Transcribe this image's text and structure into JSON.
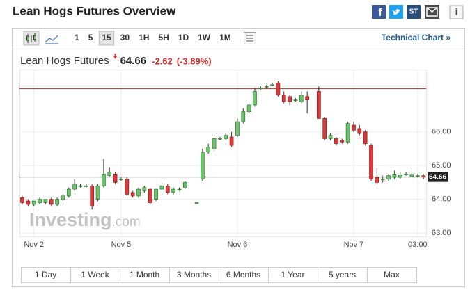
{
  "header": {
    "title": "Lean Hogs Futures Overview",
    "social": {
      "facebook": "f",
      "stocktwits": "ST",
      "info": "i"
    }
  },
  "toolbar": {
    "intervals": [
      "1",
      "5",
      "15",
      "30",
      "1H",
      "5H",
      "1D",
      "1W",
      "1M"
    ],
    "selected": 2,
    "technical": "Technical Chart »"
  },
  "quote": {
    "name": "Lean Hogs Futures",
    "price": "64.66",
    "change": "-2.62",
    "change_pct": "(-3.89%)"
  },
  "watermark": {
    "brand": "Investing",
    "suffix": ".com"
  },
  "ranges": [
    "1 Day",
    "1 Week",
    "1 Month",
    "3 Months",
    "6 Months",
    "1 Year",
    "5 years",
    "Max"
  ],
  "chart_data": {
    "type": "candlestick",
    "categories": [
      null,
      null,
      "Nov 2",
      null,
      null,
      null,
      null,
      null,
      null,
      null,
      null,
      null,
      null,
      null,
      null,
      null,
      null,
      "Nov 5",
      null,
      null,
      null,
      null,
      null,
      null,
      null,
      null,
      null,
      null,
      null,
      null,
      null,
      null,
      null,
      null,
      null,
      null,
      null,
      "Nov 6",
      null,
      null,
      null,
      null,
      null,
      null,
      null,
      null,
      null,
      null,
      null,
      null,
      null,
      null,
      null,
      null,
      null,
      null,
      null,
      "Nov 7",
      null,
      null,
      null,
      null,
      null,
      null,
      null,
      null,
      null,
      null,
      "03:00",
      null
    ],
    "open": [
      64.05,
      63.95,
      63.85,
      63.9,
      63.9,
      64.0,
      63.85,
      64.0,
      64.1,
      64.3,
      64.4,
      64.4,
      64.4,
      64.0,
      64.4,
      64.7,
      64.75,
      64.6,
      64.6,
      64.2,
      64.1,
      64.25,
      64.3,
      64.0,
      64.3,
      64.4,
      64.2,
      64.3,
      64.35,
      null,
      63.9,
      64.6,
      65.4,
      65.5,
      65.8,
      65.8,
      65.85,
      65.9,
      66.3,
      66.6,
      66.8,
      67.3,
      67.35,
      67.4,
      67.45,
      67.1,
      67.05,
      66.95,
      66.9,
      67.05,
      null,
      67.2,
      66.4,
      65.8,
      65.8,
      65.75,
      65.7,
      66.2,
      66.1,
      66.0,
      65.6,
      64.65,
      64.6,
      64.6,
      64.65,
      64.65,
      64.75,
      64.68,
      64.7,
      64.7
    ],
    "high": [
      64.1,
      64.0,
      63.95,
      64.05,
      64.0,
      64.05,
      64.05,
      64.15,
      64.35,
      64.6,
      64.45,
      64.45,
      64.45,
      64.45,
      65.2,
      64.95,
      64.8,
      64.65,
      64.65,
      64.25,
      64.35,
      64.4,
      64.35,
      64.3,
      64.5,
      64.45,
      64.35,
      64.35,
      64.55,
      null,
      63.9,
      65.5,
      65.65,
      65.85,
      65.85,
      65.95,
      66.0,
      66.4,
      66.7,
      66.85,
      67.3,
      67.35,
      67.4,
      67.45,
      67.5,
      67.2,
      67.1,
      67.0,
      67.2,
      67.2,
      null,
      67.35,
      66.45,
      65.95,
      65.85,
      65.8,
      66.3,
      66.3,
      66.2,
      66.05,
      65.65,
      64.95,
      64.7,
      64.75,
      64.85,
      64.8,
      64.8,
      64.95,
      64.75,
      64.75
    ],
    "low": [
      63.85,
      63.8,
      63.8,
      63.85,
      63.85,
      63.8,
      63.8,
      63.95,
      64.05,
      64.25,
      64.35,
      64.35,
      63.7,
      63.95,
      64.35,
      64.65,
      64.45,
      64.55,
      64.1,
      64.05,
      64.05,
      64.2,
      63.85,
      63.95,
      64.25,
      64.15,
      64.15,
      64.25,
      64.3,
      null,
      63.9,
      64.55,
      65.35,
      65.45,
      65.75,
      65.75,
      65.55,
      65.85,
      66.25,
      66.55,
      66.75,
      67.25,
      67.3,
      67.35,
      67.05,
      66.85,
      66.8,
      66.9,
      66.85,
      66.55,
      null,
      66.4,
      65.75,
      65.75,
      65.6,
      65.65,
      65.65,
      66.0,
      65.9,
      65.6,
      64.55,
      64.45,
      64.5,
      64.55,
      64.6,
      64.6,
      64.7,
      64.65,
      64.65,
      64.6
    ],
    "close": [
      63.9,
      63.85,
      63.95,
      64.0,
      64.0,
      63.85,
      64.0,
      64.1,
      64.3,
      64.45,
      64.4,
      64.4,
      63.8,
      64.4,
      64.75,
      64.8,
      64.5,
      64.6,
      64.15,
      64.1,
      64.3,
      64.35,
      63.9,
      64.3,
      64.4,
      64.2,
      64.3,
      64.3,
      64.5,
      null,
      63.9,
      65.4,
      65.55,
      65.8,
      65.8,
      65.9,
      65.6,
      66.3,
      66.6,
      66.8,
      67.2,
      67.3,
      67.35,
      67.4,
      67.1,
      66.9,
      66.9,
      66.95,
      67.1,
      66.95,
      null,
      66.4,
      65.8,
      65.9,
      65.65,
      65.7,
      66.25,
      66.05,
      65.95,
      65.65,
      64.6,
      64.5,
      64.6,
      64.7,
      64.75,
      64.72,
      64.75,
      64.74,
      64.7,
      64.66
    ],
    "up_color": "#6cc36c",
    "down_color": "#d83a3a",
    "prev_close": 67.28,
    "prev_close_color": "#a33",
    "last_price": 64.66,
    "ylim": [
      62.9,
      67.85
    ],
    "yticks": [
      {
        "value": 63,
        "label": "63.00"
      },
      {
        "value": 64,
        "label": "64.00"
      },
      {
        "value": 65,
        "label": "65.00"
      },
      {
        "value": 66,
        "label": "66.00"
      }
    ],
    "grid": true
  }
}
